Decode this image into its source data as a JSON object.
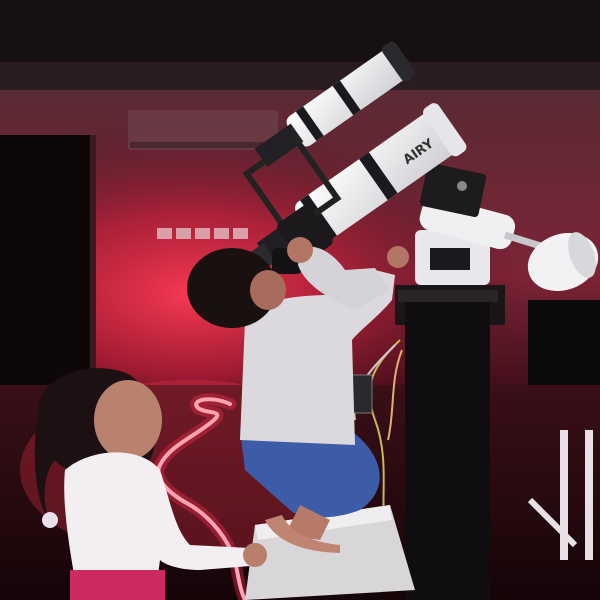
{
  "scene": {
    "description_kind": "photo",
    "telescope_label": "AIRY"
  },
  "colors": {
    "ceiling": "#1a1214",
    "wall": "#7a2a36",
    "wall_glow": "#ff2e4a",
    "floor": "#1c0a0e",
    "rope_light": "#ffd0d8",
    "tube_white": "#efefef",
    "pier": "#111014",
    "shirt": "#d9d6dc",
    "shorts": "#3d5ea8",
    "skin": "#b77a68",
    "hair": "#1a1010",
    "girl_pants": "#d02a62"
  }
}
